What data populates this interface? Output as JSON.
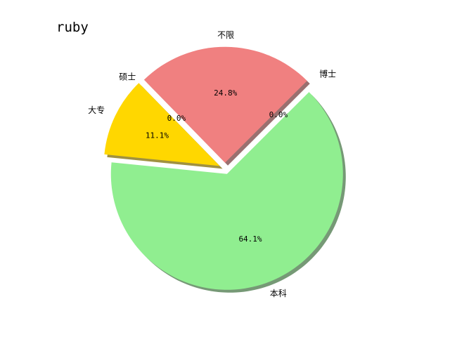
{
  "chart_data": {
    "type": "pie",
    "title": "ruby",
    "slices": [
      {
        "label": "不限",
        "value": 24.8,
        "pct_label": "24.8%",
        "color": "#F08080",
        "exploded": true
      },
      {
        "label": "硕士",
        "value": 0.0,
        "pct_label": "0.0%",
        "color": "#87CEEB",
        "exploded": false
      },
      {
        "label": "大专",
        "value": 11.1,
        "pct_label": "11.1%",
        "color": "#FFD700",
        "exploded": true
      },
      {
        "label": "本科",
        "value": 64.1,
        "pct_label": "64.1%",
        "color": "#90EE90",
        "exploded": true
      },
      {
        "label": "博士",
        "value": 0.0,
        "pct_label": "0.0%",
        "color": "#DDA0DD",
        "exploded": true
      }
    ],
    "start_angle_deg": 45,
    "direction": "counterclockwise",
    "shadow": true,
    "legend": "none"
  }
}
